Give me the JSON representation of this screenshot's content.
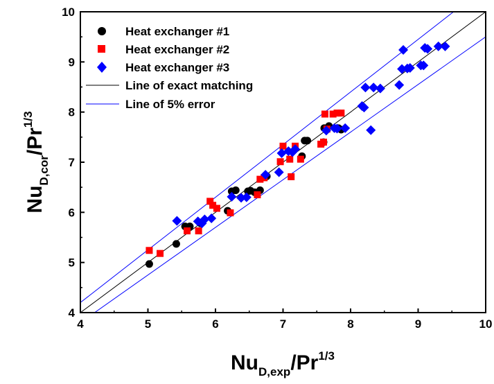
{
  "chart_data": {
    "type": "scatter",
    "title": "",
    "xlabel": {
      "base": "Nu",
      "sub": "D,exp",
      "denom": "/Pr",
      "sup": "1/3"
    },
    "ylabel": {
      "base": "Nu",
      "sub": "D,cor",
      "denom": "/Pr",
      "sup": "1/3"
    },
    "xlim": [
      4,
      10
    ],
    "ylim": [
      4,
      10
    ],
    "xticks": [
      "4",
      "5",
      "6",
      "7",
      "8",
      "9",
      "10"
    ],
    "yticks": [
      "4",
      "5",
      "6",
      "7",
      "8",
      "9",
      "10"
    ],
    "grid": false,
    "legend_position": "top-left",
    "series": [
      {
        "name": "Heat exchanger #1",
        "marker": "circle",
        "color": "#000000",
        "points": [
          [
            5.02,
            4.97
          ],
          [
            5.42,
            5.37
          ],
          [
            5.55,
            5.72
          ],
          [
            5.62,
            5.72
          ],
          [
            5.78,
            5.78
          ],
          [
            6.18,
            6.03
          ],
          [
            6.24,
            6.42
          ],
          [
            6.3,
            6.44
          ],
          [
            6.48,
            6.42
          ],
          [
            6.52,
            6.43
          ],
          [
            6.58,
            6.4
          ],
          [
            6.66,
            6.44
          ],
          [
            6.76,
            6.72
          ],
          [
            7.28,
            7.12
          ],
          [
            7.32,
            7.43
          ],
          [
            7.36,
            7.43
          ],
          [
            7.6,
            7.4
          ],
          [
            7.61,
            7.68
          ],
          [
            7.68,
            7.72
          ],
          [
            7.64,
            7.65
          ],
          [
            7.82,
            7.68
          ],
          [
            7.86,
            7.65
          ]
        ]
      },
      {
        "name": "Heat exchanger #2",
        "marker": "square",
        "color": "#ff0000",
        "points": [
          [
            5.02,
            5.24
          ],
          [
            5.18,
            5.18
          ],
          [
            5.58,
            5.63
          ],
          [
            5.75,
            5.63
          ],
          [
            5.92,
            6.22
          ],
          [
            5.96,
            6.14
          ],
          [
            6.02,
            6.08
          ],
          [
            6.22,
            5.99
          ],
          [
            6.62,
            6.35
          ],
          [
            6.66,
            6.66
          ],
          [
            6.72,
            6.69
          ],
          [
            6.96,
            7.01
          ],
          [
            7.0,
            7.32
          ],
          [
            7.1,
            7.06
          ],
          [
            7.12,
            6.71
          ],
          [
            7.18,
            7.32
          ],
          [
            7.26,
            7.06
          ],
          [
            7.56,
            7.36
          ],
          [
            7.6,
            7.4
          ],
          [
            7.62,
            7.96
          ],
          [
            7.65,
            7.66
          ],
          [
            7.74,
            7.96
          ],
          [
            7.8,
            7.98
          ],
          [
            7.86,
            7.98
          ]
        ]
      },
      {
        "name": "Heat exchanger #3",
        "marker": "diamond",
        "color": "#0000ff",
        "points": [
          [
            5.43,
            5.83
          ],
          [
            5.74,
            5.82
          ],
          [
            5.8,
            5.78
          ],
          [
            5.84,
            5.86
          ],
          [
            5.94,
            5.88
          ],
          [
            6.24,
            6.31
          ],
          [
            6.38,
            6.29
          ],
          [
            6.46,
            6.3
          ],
          [
            6.74,
            6.75
          ],
          [
            6.94,
            6.8
          ],
          [
            6.98,
            7.18
          ],
          [
            7.08,
            7.22
          ],
          [
            7.14,
            7.2
          ],
          [
            7.18,
            7.26
          ],
          [
            7.64,
            7.63
          ],
          [
            7.76,
            7.68
          ],
          [
            7.8,
            7.67
          ],
          [
            7.92,
            7.68
          ],
          [
            8.17,
            8.12
          ],
          [
            8.2,
            8.09
          ],
          [
            8.22,
            8.49
          ],
          [
            8.3,
            7.64
          ],
          [
            8.34,
            8.49
          ],
          [
            8.44,
            8.47
          ],
          [
            8.72,
            8.54
          ],
          [
            8.76,
            8.86
          ],
          [
            8.78,
            9.24
          ],
          [
            8.84,
            8.87
          ],
          [
            8.88,
            8.88
          ],
          [
            9.04,
            8.93
          ],
          [
            9.08,
            8.93
          ],
          [
            9.1,
            9.28
          ],
          [
            9.14,
            9.26
          ],
          [
            9.3,
            9.31
          ],
          [
            9.4,
            9.31
          ]
        ]
      },
      {
        "name": "Line of exact matching",
        "type": "line",
        "color": "#000000",
        "slope": 1.0
      },
      {
        "name": "Line of 5% error",
        "type": "line",
        "color": "#0000ff",
        "slopes": [
          1.05,
          0.95
        ]
      }
    ]
  }
}
